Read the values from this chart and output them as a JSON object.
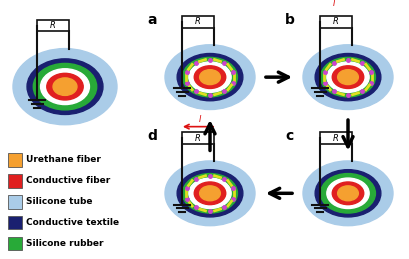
{
  "bg_color": "#ffffff",
  "light_blue": "#aacce8",
  "dark_blue": "#1a2070",
  "green": "#28aa38",
  "white_layer": "#ffffff",
  "red": "#e02020",
  "orange": "#f5a030",
  "yellow_dash": "#e0e020",
  "purple_dot": "#cc44cc",
  "black": "#111111",
  "red_arrow": "#dd1111",
  "legend_items": [
    {
      "label": "Urethane fiber",
      "color": "#f5a030"
    },
    {
      "label": "Conductive fiber",
      "color": "#e02020"
    },
    {
      "label": "Silicone tube",
      "color": "#aacce8"
    },
    {
      "label": "Conductive textile",
      "color": "#1a2070"
    },
    {
      "label": "Silicone rubber",
      "color": "#28aa38"
    }
  ]
}
